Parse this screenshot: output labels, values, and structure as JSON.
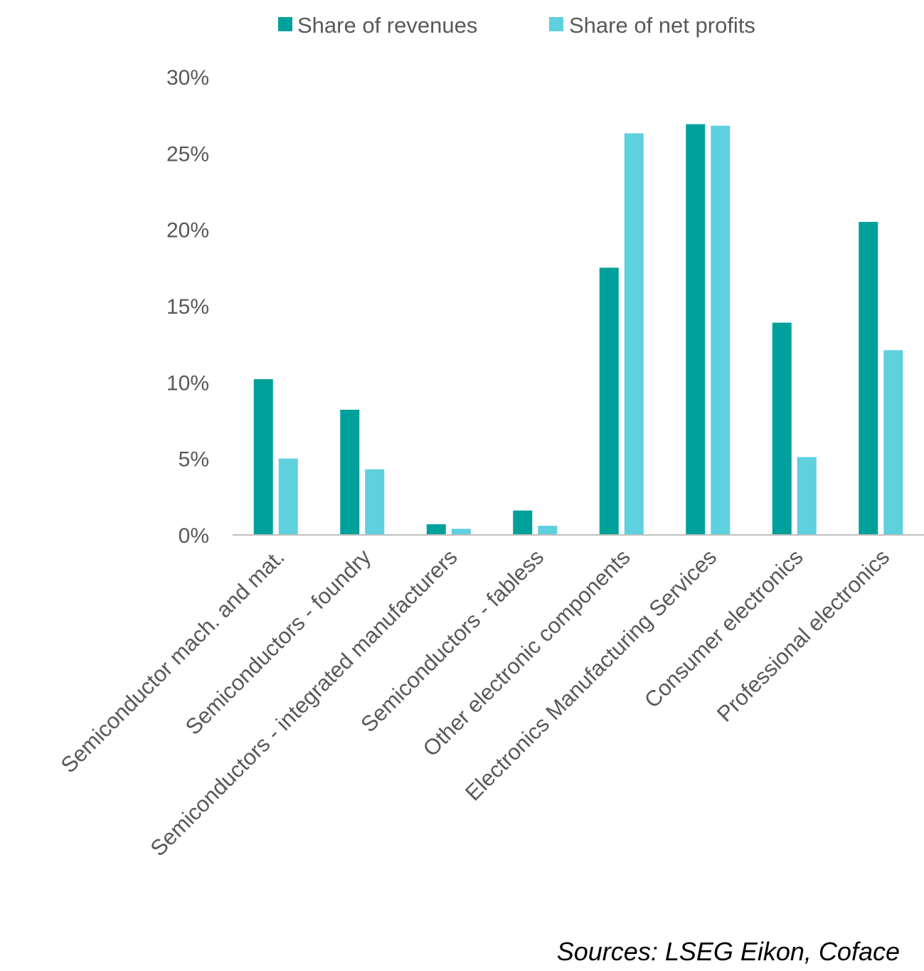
{
  "chart_data": {
    "type": "bar",
    "categories": [
      "Semiconductor mach. and mat.",
      "Semiconductors - foundry",
      "Semiconductors - integrated manufacturers",
      "Semiconductors - fabless",
      "Other electronic components",
      "Electronics Manufacturing Services",
      "Consumer electronics",
      "Professional electronics"
    ],
    "series": [
      {
        "name": "Share of revenues",
        "color": "#00A19A",
        "values": [
          10.2,
          8.2,
          0.7,
          1.6,
          17.5,
          26.9,
          13.9,
          20.5
        ]
      },
      {
        "name": "Share of net profits",
        "color": "#5ED0DE",
        "values": [
          5.0,
          4.3,
          0.4,
          0.6,
          26.3,
          26.8,
          5.1,
          12.1
        ]
      }
    ],
    "yticks": [
      "0%",
      "5%",
      "10%",
      "15%",
      "20%",
      "25%",
      "30%"
    ],
    "ylim": [
      0,
      30
    ],
    "grid": false,
    "legend_position": "top"
  },
  "source": "Sources: LSEG Eikon, Coface"
}
